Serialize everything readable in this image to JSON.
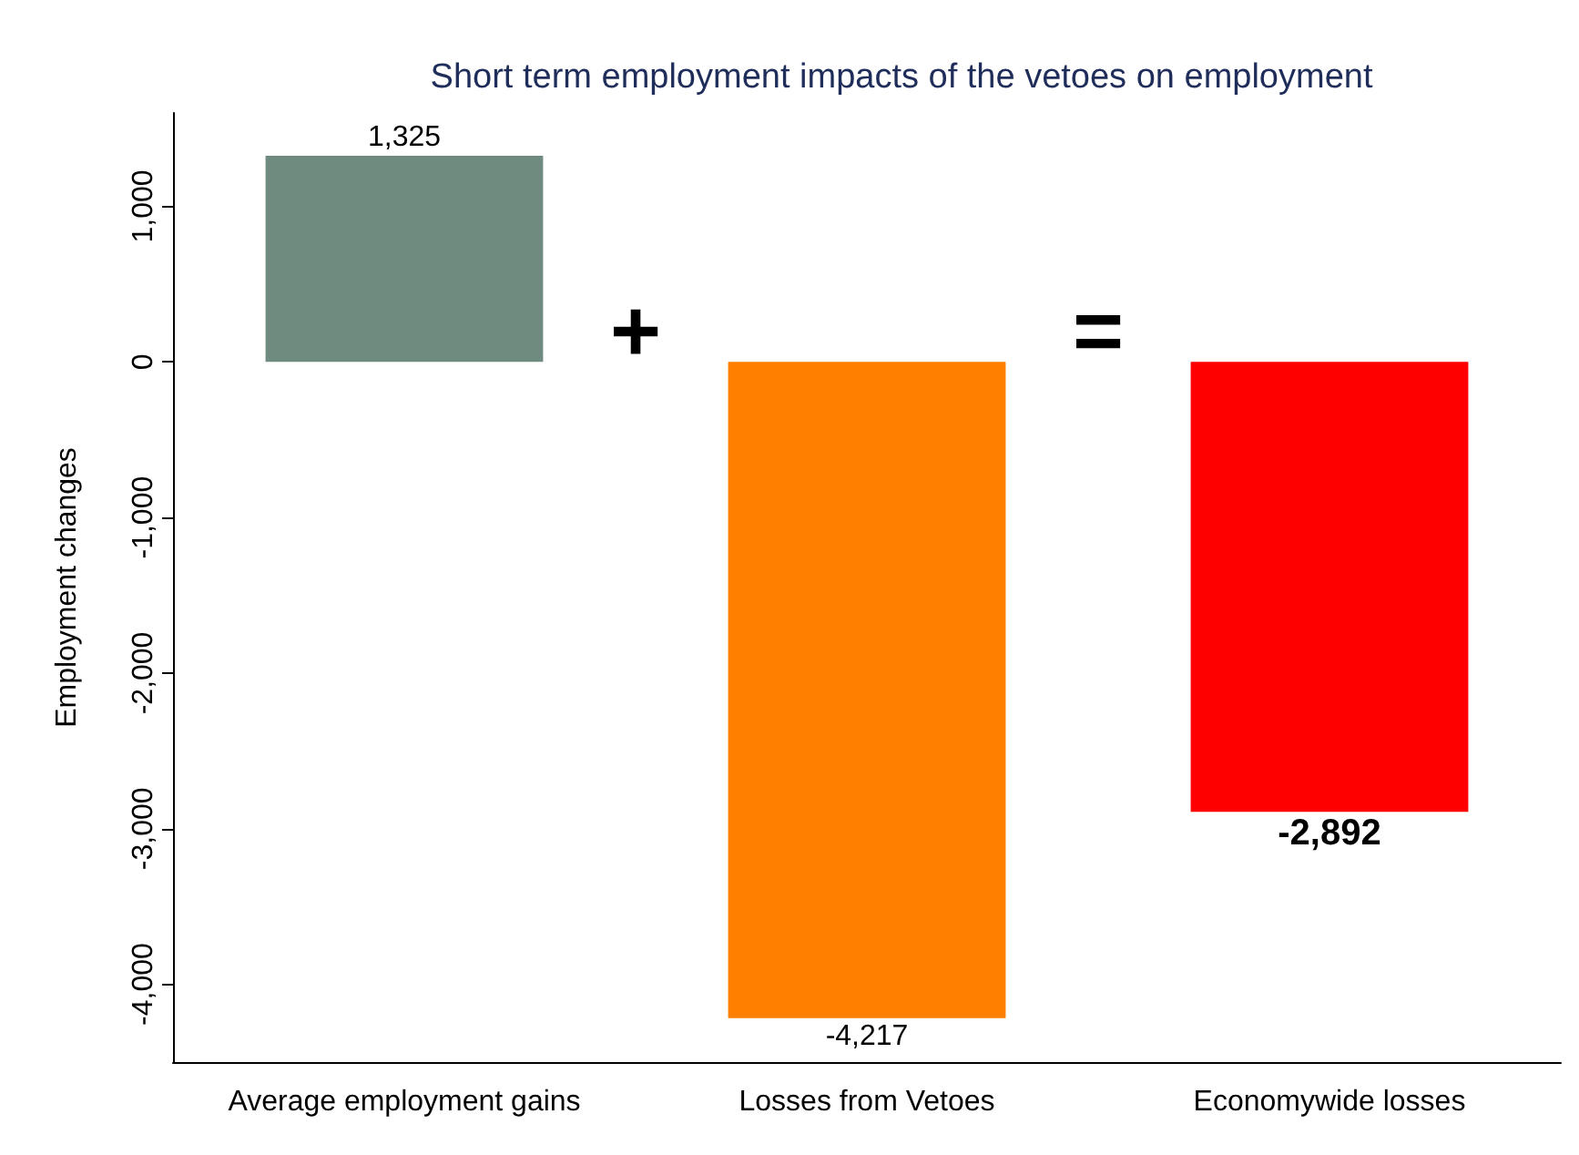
{
  "chart_data": {
    "type": "bar",
    "title": "Short term employment impacts of the vetoes on employment",
    "ylabel": "Employment changes",
    "categories": [
      "Average employment gains",
      "Losses from Vetoes",
      "Economywide losses"
    ],
    "values": [
      1325,
      -4217,
      -2892
    ],
    "colors": [
      "#6f8b7f",
      "#ff8000",
      "#ff0000"
    ],
    "value_labels": [
      "1,325",
      "-4,217",
      "-2,892"
    ],
    "ylim": [
      -4500,
      1600
    ],
    "yticks": [
      {
        "value": -4000,
        "label": "-4,000"
      },
      {
        "value": -3000,
        "label": "-3,000"
      },
      {
        "value": -2000,
        "label": "-2,000"
      },
      {
        "value": -1000,
        "label": "-1,000"
      },
      {
        "value": 0,
        "label": "0"
      },
      {
        "value": 1000,
        "label": "1,000"
      }
    ],
    "annotations": [
      "+",
      "="
    ],
    "grid": false
  }
}
